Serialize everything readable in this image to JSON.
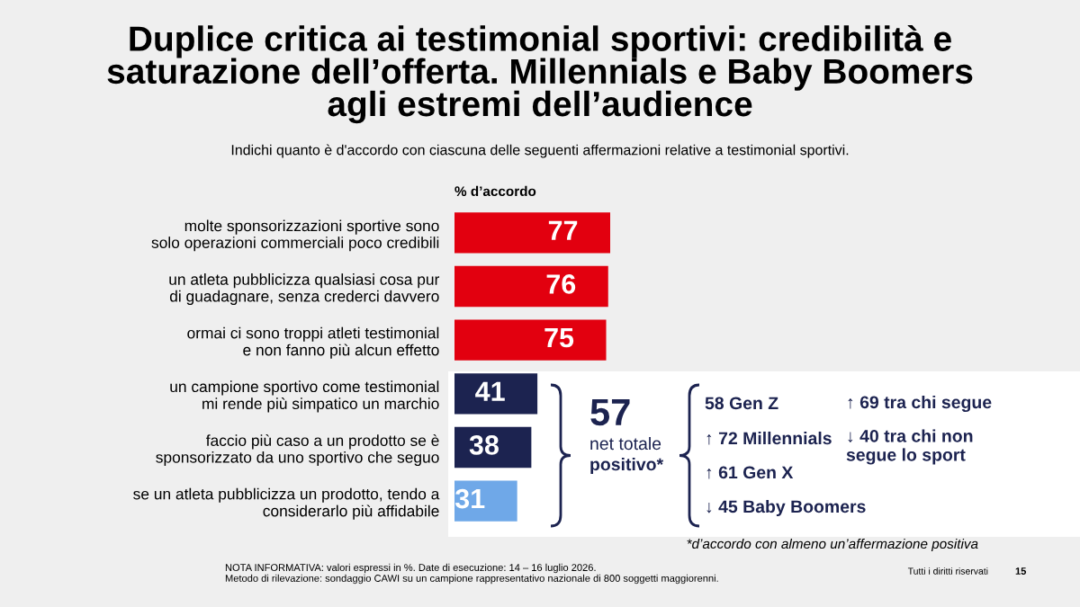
{
  "chart_data": {
    "type": "bar",
    "orientation": "horizontal",
    "title": "Duplice critica ai testimonial sportivi: credibilità e\nsaturazione dell’offerta. Millennials e Baby Boomers\nagli estremi dell’audience",
    "subtitle": "Indichi quanto è d'accordo con ciascuna delle seguenti affermazioni relative a testimonial sportivi.",
    "xlabel": "% d’accordo",
    "categories": [
      "molte sponsorizzazioni sportive sono\nsolo operazioni commerciali poco credibili",
      "un atleta pubblicizza qualsiasi cosa pur\ndi guadagnare, senza crederci davvero",
      "ormai ci sono troppi atleti testimonial\ne non fanno più alcun effetto",
      "un campione sportivo come testimonial\nmi rende più simpatico un marchio",
      "faccio più caso a un prodotto se è\nsponsorizzato da uno sportivo che seguo",
      "se un atleta pubblicizza un prodotto, tendo a\nconsiderarlo più affidabile"
    ],
    "values": [
      77,
      76,
      75,
      41,
      38,
      31
    ],
    "colors": [
      "#e2000f",
      "#e2000f",
      "#e2000f",
      "#1c2350",
      "#1c2350",
      "#6fa8e8"
    ],
    "data_labels": true,
    "annotations": [
      "57",
      "net totale",
      "positivo*",
      "58 Gen Z",
      "↑ 72 Millennials",
      "↑ 61 Gen X",
      "↓ 45 Baby Boomers",
      "↑ 69 tra chi segue",
      "↓ 40 tra chi non\nsegue lo sport",
      "*d’accordo con almeno un’affermazione positiva",
      "NOTA INFORMATIVA: valori espressi in %. Date di esecuzione: 14 – 16 luglio 2026.\nMetodo di rilevazione: sondaggio CAWI su un campione rappresentativo nazionale di 800 soggetti maggiorenni.",
      "Tutti i diritti riservati",
      "15"
    ]
  }
}
